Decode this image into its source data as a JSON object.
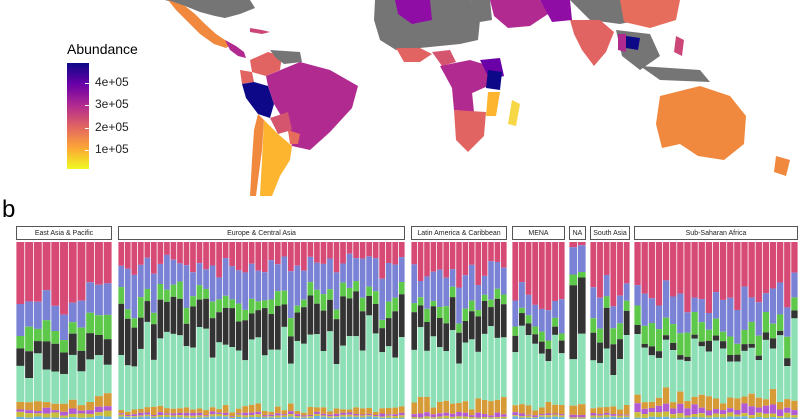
{
  "panel_label": "b",
  "chart_data": [
    {
      "type": "choropleth-map",
      "title": "",
      "legend": {
        "title": "Abundance",
        "ticks": [
          "4e+05",
          "3e+05",
          "2e+05",
          "1e+05"
        ],
        "tick_values": [
          400000,
          300000,
          200000,
          100000
        ],
        "range": [
          40000,
          460000
        ],
        "colormap": "plasma"
      },
      "no_data_color": "#757575",
      "regions_shown": [
        "North America",
        "Central America",
        "South America",
        "Africa",
        "Middle East",
        "South Asia",
        "Southeast Asia",
        "Australia"
      ]
    },
    {
      "type": "bar",
      "stacked": true,
      "normalized": true,
      "facets": [
        {
          "label": "East Asia & Pacific",
          "n": 11
        },
        {
          "label": "Europe & Central Asia",
          "n": 44
        },
        {
          "label": "Latin America & Caribbean",
          "n": 15
        },
        {
          "label": "MENA",
          "n": 8
        },
        {
          "label": "NA",
          "n": 2
        },
        {
          "label": "South Asia",
          "n": 6
        },
        {
          "label": "Sub-Saharan Africa",
          "n": 23
        }
      ],
      "series_colors": [
        "#d84a76",
        "#7a82d6",
        "#5ec84a",
        "#333333",
        "#8ddfb6",
        "#d69a37",
        "#b25ad3",
        "#c8bd3a",
        "#6ab0e0"
      ],
      "layer_order": [
        "pink",
        "blue",
        "green",
        "dark",
        "mint",
        "orange",
        "purple",
        "olive",
        "cyan"
      ],
      "facet_means": {
        "East Asia & Pacific": [
          0.33,
          0.16,
          0.1,
          0.12,
          0.2,
          0.04,
          0.02,
          0.02,
          0.01
        ],
        "Europe & Central Asia": [
          0.13,
          0.17,
          0.07,
          0.2,
          0.37,
          0.03,
          0.01,
          0.01,
          0.01
        ],
        "Latin America & Caribbean": [
          0.17,
          0.18,
          0.06,
          0.16,
          0.33,
          0.07,
          0.02,
          0.01,
          0.0
        ],
        "MENA": [
          0.33,
          0.14,
          0.04,
          0.06,
          0.35,
          0.05,
          0.01,
          0.01,
          0.01
        ],
        "NA": [
          0.03,
          0.11,
          0.05,
          0.3,
          0.45,
          0.04,
          0.01,
          0.01,
          0.0
        ],
        "South Asia": [
          0.28,
          0.14,
          0.07,
          0.14,
          0.3,
          0.04,
          0.01,
          0.01,
          0.01
        ],
        "Sub-Saharan Africa": [
          0.28,
          0.15,
          0.1,
          0.04,
          0.3,
          0.06,
          0.04,
          0.02,
          0.01
        ]
      }
    }
  ]
}
